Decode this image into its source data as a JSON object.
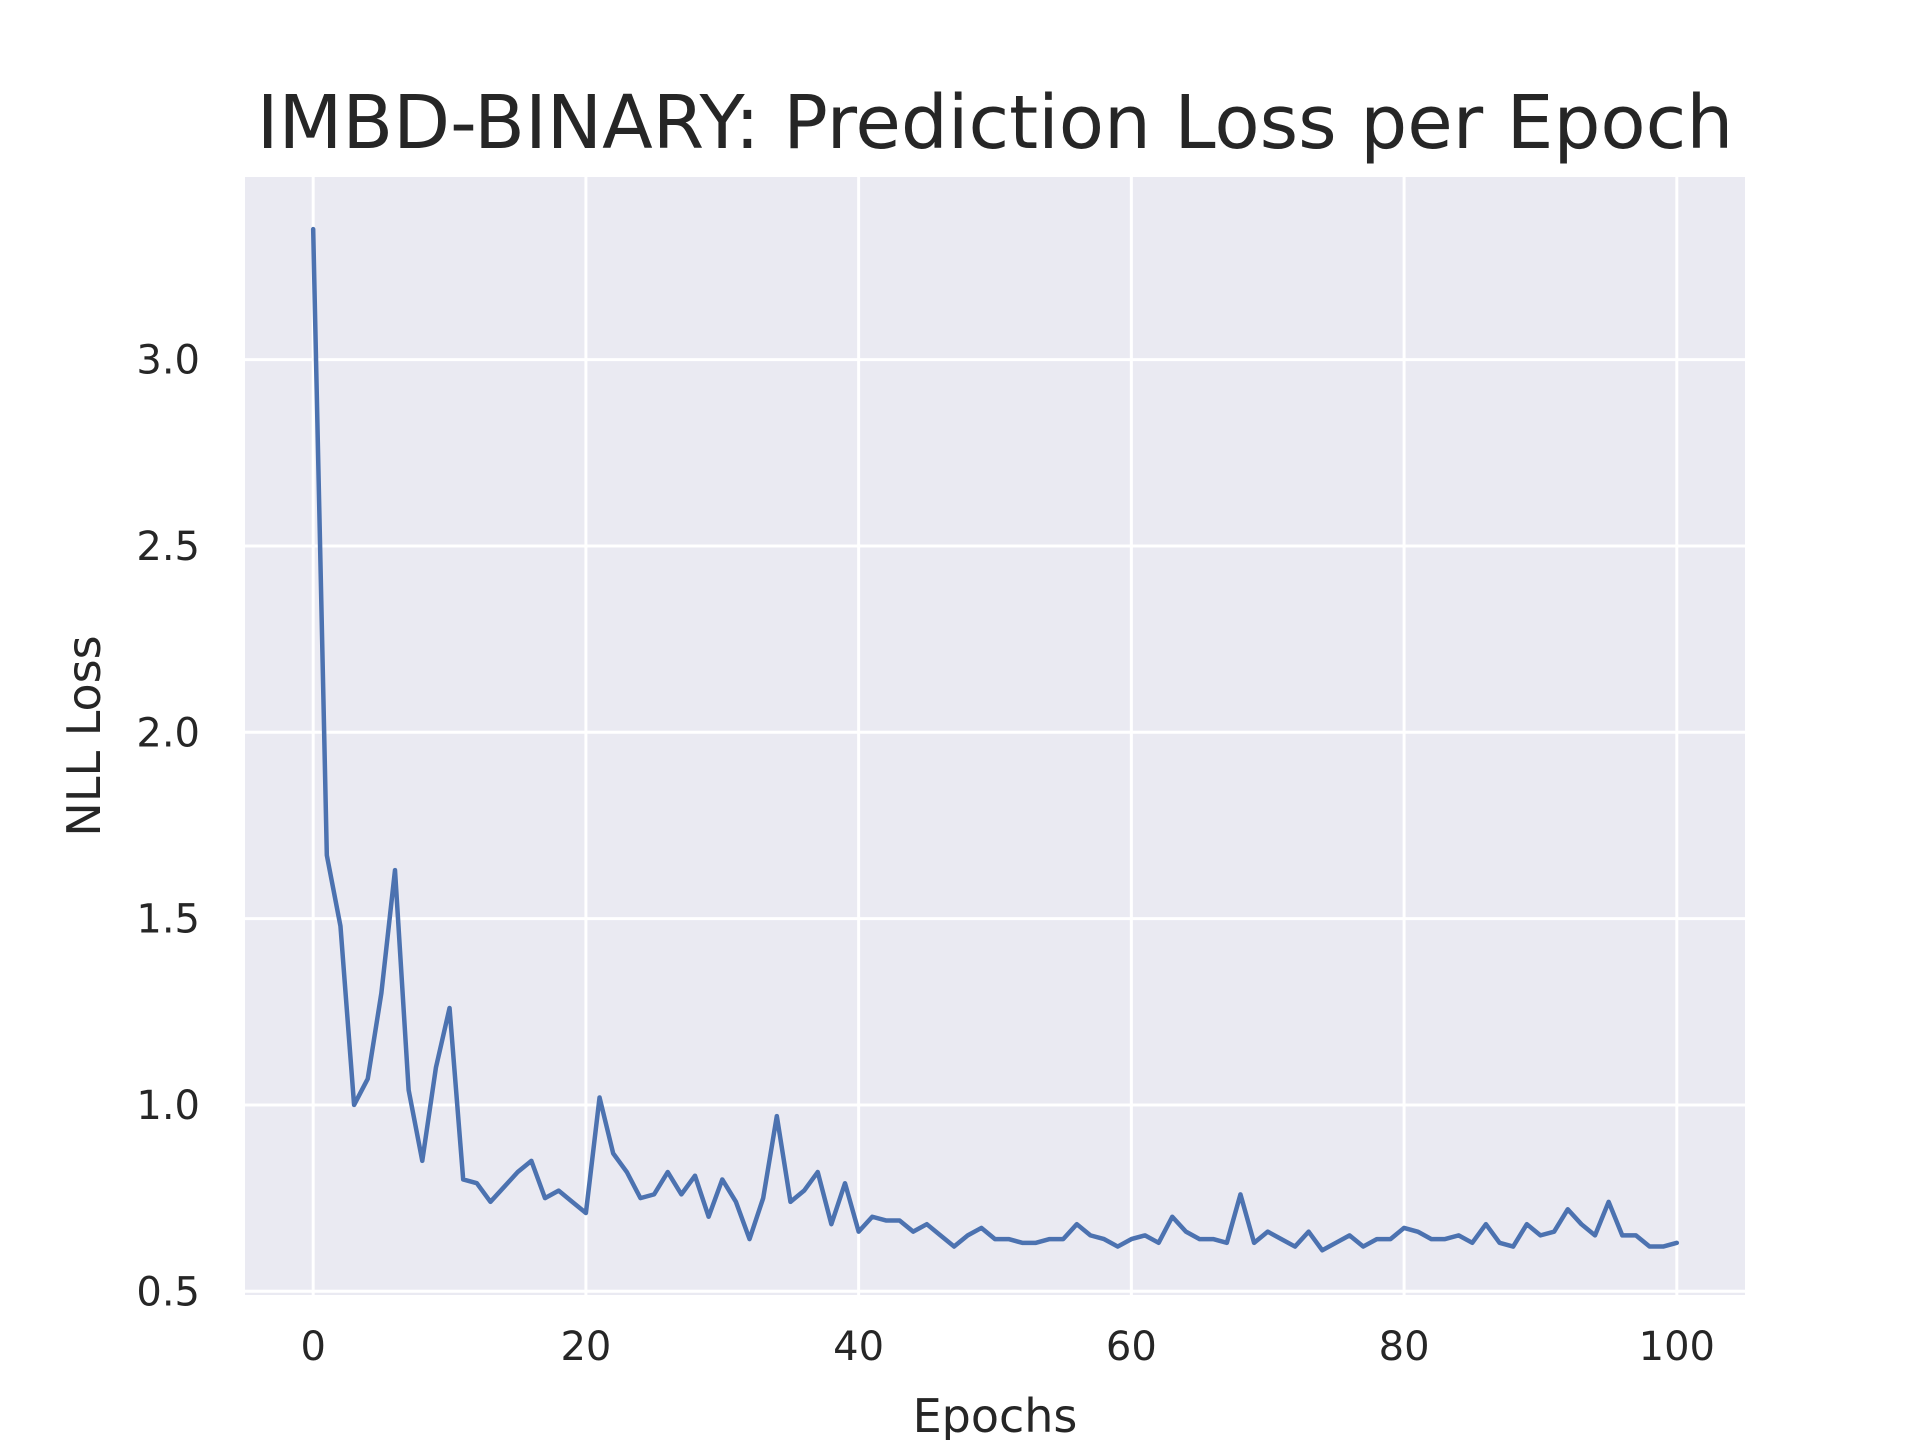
{
  "chart_data": {
    "type": "line",
    "title": "IMBD-BINARY: Prediction Loss per Epoch",
    "xlabel": "Epochs",
    "ylabel": "NLL Loss",
    "xlim": [
      -5,
      105
    ],
    "ylim": [
      0.49,
      3.49
    ],
    "xticks": [
      0,
      20,
      40,
      60,
      80,
      100
    ],
    "yticks": [
      0.5,
      1.0,
      1.5,
      2.0,
      2.5,
      3.0
    ],
    "xtick_labels": [
      "0",
      "20",
      "40",
      "60",
      "80",
      "100"
    ],
    "ytick_labels": [
      "0.5",
      "1.0",
      "1.5",
      "2.0",
      "2.5",
      "3.0"
    ],
    "grid": true,
    "colors": {
      "background": "#eaeaf2",
      "grid": "#ffffff",
      "line": "#4c72b0"
    },
    "series": [
      {
        "x": [
          0,
          1,
          2,
          3,
          4,
          5,
          6,
          7,
          8,
          9,
          10,
          11,
          12,
          13,
          14,
          15,
          16,
          17,
          18,
          19,
          20,
          21,
          22,
          23,
          24,
          25,
          26,
          27,
          28,
          29,
          30,
          31,
          32,
          33,
          34,
          35,
          36,
          37,
          38,
          39,
          40,
          41,
          42,
          43,
          44,
          45,
          46,
          47,
          48,
          49,
          50,
          51,
          52,
          53,
          54,
          55,
          56,
          57,
          58,
          59,
          60,
          61,
          62,
          63,
          64,
          65,
          66,
          67,
          68,
          69,
          70,
          71,
          72,
          73,
          74,
          75,
          76,
          77,
          78,
          79,
          80,
          81,
          82,
          83,
          84,
          85,
          86,
          87,
          88,
          89,
          90,
          91,
          92,
          93,
          94,
          95,
          96,
          97,
          98,
          99,
          100
        ],
        "values": [
          3.35,
          1.67,
          1.48,
          1.0,
          1.07,
          1.3,
          1.63,
          1.04,
          0.85,
          1.1,
          1.26,
          0.8,
          0.79,
          0.74,
          0.78,
          0.82,
          0.85,
          0.75,
          0.77,
          0.74,
          0.71,
          1.02,
          0.87,
          0.82,
          0.75,
          0.76,
          0.82,
          0.76,
          0.81,
          0.7,
          0.8,
          0.74,
          0.64,
          0.75,
          0.97,
          0.74,
          0.77,
          0.82,
          0.68,
          0.79,
          0.66,
          0.7,
          0.69,
          0.69,
          0.66,
          0.68,
          0.65,
          0.62,
          0.65,
          0.67,
          0.64,
          0.64,
          0.63,
          0.63,
          0.64,
          0.64,
          0.68,
          0.65,
          0.64,
          0.62,
          0.64,
          0.65,
          0.63,
          0.7,
          0.66,
          0.64,
          0.64,
          0.63,
          0.76,
          0.63,
          0.66,
          0.64,
          0.62,
          0.66,
          0.61,
          0.63,
          0.65,
          0.62,
          0.64,
          0.64,
          0.67,
          0.66,
          0.64,
          0.64,
          0.65,
          0.63,
          0.68,
          0.63,
          0.62,
          0.68,
          0.65,
          0.66,
          0.72,
          0.68,
          0.65,
          0.74,
          0.65,
          0.65,
          0.62,
          0.62,
          0.63
        ]
      }
    ]
  }
}
